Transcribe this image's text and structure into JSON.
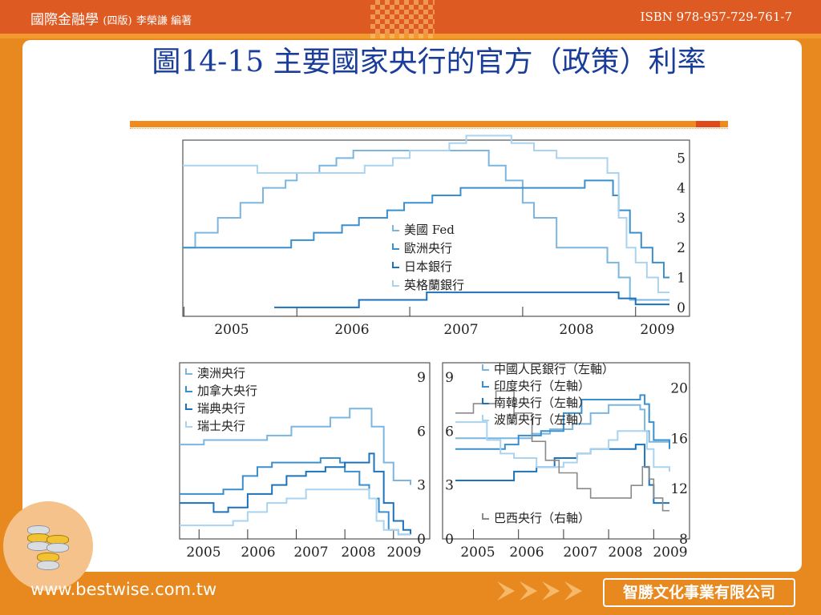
{
  "header": {
    "book_title": "國際金融學",
    "edition": "(四版)",
    "author": "李榮謙 編著",
    "isbn": "ISBN 978-957-729-761-7"
  },
  "slide": {
    "title": "圖14-15 主要國家央行的官方（政策）利率"
  },
  "footer": {
    "url": "www.bestwise.com.tw",
    "publisher": "智勝文化事業有限公司"
  },
  "colors": {
    "fed": "#7ab6e0",
    "ecb": "#3a8fce",
    "boj": "#1d73bb",
    "boe": "#a9d3ef",
    "brazil": "#8a8a8a",
    "accent": "#f08a1e",
    "title": "#1a3d9a"
  },
  "chart_data": [
    {
      "type": "line",
      "x_ticks": [
        "2005",
        "2006",
        "2007",
        "2008",
        "2009"
      ],
      "xlim": [
        2004.99,
        2009.3
      ],
      "y_ticks": [
        "0",
        "1",
        "2",
        "3",
        "4",
        "5"
      ],
      "ylim": [
        -0.3,
        5.6
      ],
      "series": [
        {
          "name": "美國 Fed",
          "points": [
            [
              2004.99,
              2.0
            ],
            [
              2005.1,
              2.5
            ],
            [
              2005.3,
              3.0
            ],
            [
              2005.5,
              3.5
            ],
            [
              2005.7,
              4.0
            ],
            [
              2005.9,
              4.25
            ],
            [
              2006.0,
              4.5
            ],
            [
              2006.2,
              4.75
            ],
            [
              2006.35,
              5.0
            ],
            [
              2006.5,
              5.25
            ],
            [
              2007.6,
              5.25
            ],
            [
              2007.7,
              4.75
            ],
            [
              2007.85,
              4.25
            ],
            [
              2008.0,
              3.5
            ],
            [
              2008.1,
              3.0
            ],
            [
              2008.3,
              2.0
            ],
            [
              2008.75,
              1.5
            ],
            [
              2008.85,
              1.0
            ],
            [
              2008.95,
              0.25
            ],
            [
              2009.3,
              0.25
            ]
          ]
        },
        {
          "name": "歐洲央行",
          "points": [
            [
              2004.99,
              2.0
            ],
            [
              2005.9,
              2.0
            ],
            [
              2005.95,
              2.25
            ],
            [
              2006.15,
              2.5
            ],
            [
              2006.4,
              2.75
            ],
            [
              2006.55,
              3.0
            ],
            [
              2006.8,
              3.25
            ],
            [
              2006.95,
              3.5
            ],
            [
              2007.2,
              3.75
            ],
            [
              2007.45,
              4.0
            ],
            [
              2008.5,
              4.0
            ],
            [
              2008.55,
              4.25
            ],
            [
              2008.8,
              3.75
            ],
            [
              2008.85,
              3.25
            ],
            [
              2008.95,
              2.5
            ],
            [
              2009.05,
              2.0
            ],
            [
              2009.15,
              1.5
            ],
            [
              2009.25,
              1.0
            ],
            [
              2009.3,
              1.0
            ]
          ]
        },
        {
          "name": "日本銀行",
          "points": [
            [
              2005.8,
              0.0
            ],
            [
              2006.5,
              0.0
            ],
            [
              2006.55,
              0.25
            ],
            [
              2007.1,
              0.25
            ],
            [
              2007.15,
              0.5
            ],
            [
              2008.8,
              0.5
            ],
            [
              2008.85,
              0.3
            ],
            [
              2009.0,
              0.1
            ],
            [
              2009.3,
              0.1
            ]
          ]
        },
        {
          "name": "英格蘭銀行",
          "points": [
            [
              2004.99,
              4.75
            ],
            [
              2005.6,
              4.75
            ],
            [
              2005.65,
              4.5
            ],
            [
              2006.55,
              4.5
            ],
            [
              2006.6,
              4.75
            ],
            [
              2006.85,
              5.0
            ],
            [
              2007.0,
              5.25
            ],
            [
              2007.35,
              5.5
            ],
            [
              2007.5,
              5.75
            ],
            [
              2007.9,
              5.5
            ],
            [
              2008.1,
              5.25
            ],
            [
              2008.3,
              5.0
            ],
            [
              2008.75,
              4.5
            ],
            [
              2008.85,
              3.0
            ],
            [
              2008.92,
              2.0
            ],
            [
              2009.0,
              1.5
            ],
            [
              2009.1,
              1.0
            ],
            [
              2009.2,
              0.5
            ],
            [
              2009.3,
              0.5
            ]
          ]
        }
      ]
    },
    {
      "type": "line",
      "x_ticks": [
        "2005",
        "2006",
        "2007",
        "2008",
        "2009"
      ],
      "xlim": [
        2004.6,
        2009.35
      ],
      "y_ticks": [
        "0",
        "3",
        "6",
        "9"
      ],
      "ylim": [
        0,
        9.8
      ],
      "series": [
        {
          "name": "澳洲央行",
          "points": [
            [
              2004.6,
              5.25
            ],
            [
              2005.1,
              5.5
            ],
            [
              2006.4,
              5.75
            ],
            [
              2006.9,
              6.25
            ],
            [
              2007.7,
              6.75
            ],
            [
              2008.1,
              7.25
            ],
            [
              2008.55,
              6.25
            ],
            [
              2008.8,
              4.25
            ],
            [
              2009.0,
              3.25
            ],
            [
              2009.35,
              3.0
            ]
          ]
        },
        {
          "name": "加拿大央行",
          "points": [
            [
              2004.6,
              2.5
            ],
            [
              2005.1,
              2.5
            ],
            [
              2005.5,
              2.75
            ],
            [
              2005.9,
              3.5
            ],
            [
              2006.2,
              4.0
            ],
            [
              2006.5,
              4.25
            ],
            [
              2007.5,
              4.5
            ],
            [
              2007.9,
              4.25
            ],
            [
              2008.0,
              3.75
            ],
            [
              2008.3,
              3.0
            ],
            [
              2008.5,
              2.25
            ],
            [
              2008.7,
              1.5
            ],
            [
              2008.9,
              0.5
            ],
            [
              2009.1,
              0.25
            ],
            [
              2009.35,
              0.25
            ]
          ]
        },
        {
          "name": "瑞典央行",
          "points": [
            [
              2004.6,
              2.0
            ],
            [
              2005.3,
              1.5
            ],
            [
              2005.6,
              1.75
            ],
            [
              2006.0,
              2.5
            ],
            [
              2006.5,
              3.0
            ],
            [
              2006.8,
              3.5
            ],
            [
              2007.2,
              3.75
            ],
            [
              2007.6,
              4.0
            ],
            [
              2008.0,
              4.25
            ],
            [
              2008.5,
              4.75
            ],
            [
              2008.6,
              3.75
            ],
            [
              2008.8,
              2.0
            ],
            [
              2009.0,
              1.0
            ],
            [
              2009.2,
              0.5
            ],
            [
              2009.35,
              0.25
            ]
          ]
        },
        {
          "name": "瑞士央行",
          "points": [
            [
              2004.6,
              0.75
            ],
            [
              2005.3,
              0.75
            ],
            [
              2005.7,
              1.0
            ],
            [
              2006.0,
              1.5
            ],
            [
              2006.4,
              2.0
            ],
            [
              2006.8,
              2.25
            ],
            [
              2007.2,
              2.75
            ],
            [
              2007.6,
              2.75
            ],
            [
              2008.3,
              2.75
            ],
            [
              2008.5,
              2.25
            ],
            [
              2008.65,
              1.0
            ],
            [
              2008.8,
              0.5
            ],
            [
              2009.1,
              0.25
            ],
            [
              2009.35,
              0.25
            ]
          ]
        }
      ]
    },
    {
      "type": "line",
      "x_ticks": [
        "2005",
        "2006",
        "2007",
        "2008",
        "2009"
      ],
      "xlim": [
        2004.6,
        2009.35
      ],
      "y_ticks": [
        "0",
        "3",
        "6",
        "9"
      ],
      "ylim": [
        0,
        9.8
      ],
      "y2_ticks": [
        "8",
        "12",
        "16",
        "20"
      ],
      "y2lim": [
        8,
        22
      ],
      "series": [
        {
          "name": "中國人民銀行（左軸）",
          "points": [
            [
              2004.6,
              5.6
            ],
            [
              2006.0,
              5.6
            ],
            [
              2006.3,
              5.85
            ],
            [
              2006.7,
              6.1
            ],
            [
              2007.2,
              6.4
            ],
            [
              2007.6,
              7.0
            ],
            [
              2008.0,
              7.45
            ],
            [
              2008.7,
              7.2
            ],
            [
              2008.8,
              6.0
            ],
            [
              2008.9,
              5.4
            ],
            [
              2009.35,
              5.4
            ]
          ]
        },
        {
          "name": "印度央行（左軸）",
          "points": [
            [
              2004.6,
              5.0
            ],
            [
              2005.7,
              5.25
            ],
            [
              2006.0,
              5.75
            ],
            [
              2006.5,
              6.0
            ],
            [
              2007.0,
              7.0
            ],
            [
              2007.4,
              7.75
            ],
            [
              2008.5,
              7.75
            ],
            [
              2008.7,
              8.0
            ],
            [
              2008.8,
              7.5
            ],
            [
              2008.9,
              6.5
            ],
            [
              2009.0,
              5.5
            ],
            [
              2009.35,
              5.0
            ]
          ]
        },
        {
          "name": "南韓央行（左軸）",
          "points": [
            [
              2004.6,
              3.25
            ],
            [
              2005.7,
              3.25
            ],
            [
              2005.9,
              3.75
            ],
            [
              2006.4,
              4.0
            ],
            [
              2006.8,
              4.5
            ],
            [
              2007.3,
              4.75
            ],
            [
              2007.6,
              5.0
            ],
            [
              2008.6,
              5.25
            ],
            [
              2008.8,
              4.0
            ],
            [
              2008.9,
              3.0
            ],
            [
              2009.0,
              2.0
            ],
            [
              2009.35,
              2.0
            ]
          ]
        },
        {
          "name": "波蘭央行（左軸）",
          "points": [
            [
              2004.6,
              6.5
            ],
            [
              2005.0,
              6.5
            ],
            [
              2005.3,
              5.5
            ],
            [
              2005.6,
              4.75
            ],
            [
              2005.9,
              4.5
            ],
            [
              2006.4,
              4.0
            ],
            [
              2007.0,
              4.25
            ],
            [
              2007.3,
              4.75
            ],
            [
              2007.6,
              5.0
            ],
            [
              2008.0,
              5.5
            ],
            [
              2008.2,
              6.0
            ],
            [
              2008.7,
              6.0
            ],
            [
              2008.85,
              5.0
            ],
            [
              2009.0,
              4.0
            ],
            [
              2009.35,
              3.75
            ]
          ]
        }
      ],
      "secondary_series": [
        {
          "name": "巴西央行（右軸）",
          "points": [
            [
              2004.6,
              18.0
            ],
            [
              2005.0,
              18.75
            ],
            [
              2005.5,
              19.75
            ],
            [
              2005.9,
              18.0
            ],
            [
              2006.3,
              15.75
            ],
            [
              2006.6,
              14.25
            ],
            [
              2006.9,
              13.25
            ],
            [
              2007.3,
              12.0
            ],
            [
              2007.6,
              11.25
            ],
            [
              2008.3,
              11.25
            ],
            [
              2008.5,
              12.25
            ],
            [
              2008.75,
              13.75
            ],
            [
              2008.9,
              12.75
            ],
            [
              2009.0,
              11.25
            ],
            [
              2009.2,
              10.25
            ],
            [
              2009.35,
              10.25
            ]
          ]
        }
      ]
    }
  ]
}
